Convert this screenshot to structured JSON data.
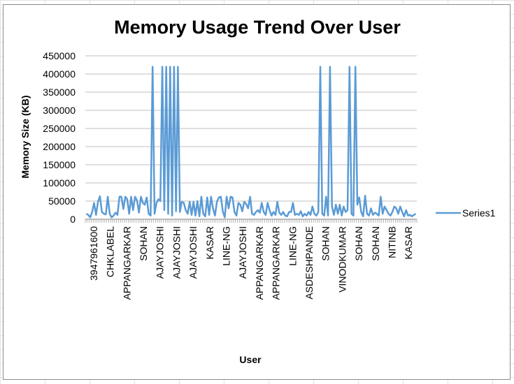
{
  "chart_data": {
    "type": "line",
    "title": "Memory Usage Trend Over User",
    "xlabel": "User",
    "ylabel": "Memory Size (KB)",
    "ylim": [
      0,
      450000
    ],
    "y_ticks": [
      "0",
      "50000",
      "100000",
      "150000",
      "200000",
      "250000",
      "300000",
      "350000",
      "400000",
      "450000"
    ],
    "x_tick_labels": [
      "3947961600",
      "CHKLABEL",
      "APPANGARKAR",
      "SOHAN",
      "AJAYJOSHI",
      "AJAYJOSHI",
      "AJAYJOSHI",
      "KASAR",
      "LINE-NG",
      "AJAYJOSHI",
      "APPANGARKAR",
      "APPANGARKAR",
      "LINE-NG",
      "ASDESHPANDE",
      "SOHAN",
      "VINODKUMAR",
      "SOHAN",
      "SOHAN",
      "NITINB",
      "KASAR"
    ],
    "legend": "right",
    "grid": true,
    "color": "#5b9bd5",
    "series": [
      {
        "name": "Series1",
        "values": [
          15000,
          12000,
          5000,
          20000,
          45000,
          12000,
          48000,
          63000,
          20000,
          15000,
          13000,
          62000,
          15000,
          5000,
          10000,
          18000,
          12000,
          62000,
          62000,
          28000,
          62000,
          55000,
          15000,
          62000,
          25000,
          62000,
          52000,
          18000,
          62000,
          45000,
          40000,
          60000,
          15000,
          10000,
          420000,
          15000,
          45000,
          55000,
          50000,
          420000,
          25000,
          420000,
          15000,
          420000,
          10000,
          420000,
          22000,
          420000,
          20000,
          48000,
          45000,
          25000,
          15000,
          48000,
          12000,
          48000,
          10000,
          50000,
          8000,
          62000,
          15000,
          8000,
          60000,
          12000,
          62000,
          30000,
          10000,
          48000,
          60000,
          62000,
          22000,
          5000,
          62000,
          30000,
          62000,
          60000,
          20000,
          10000,
          45000,
          40000,
          22000,
          48000,
          42000,
          30000,
          62000,
          15000,
          12000,
          20000,
          25000,
          18000,
          45000,
          20000,
          12000,
          45000,
          25000,
          10000,
          20000,
          12000,
          48000,
          18000,
          12000,
          20000,
          10000,
          8000,
          20000,
          20000,
          45000,
          12000,
          15000,
          12000,
          22000,
          8000,
          15000,
          10000,
          20000,
          12000,
          35000,
          15000,
          10000,
          20000,
          420000,
          15000,
          10000,
          62000,
          10000,
          420000,
          35000,
          12000,
          40000,
          15000,
          40000,
          10000,
          35000,
          20000,
          25000,
          420000,
          15000,
          10000,
          420000,
          40000,
          60000,
          20000,
          8000,
          65000,
          15000,
          10000,
          30000,
          12000,
          18000,
          15000,
          10000,
          62000,
          15000,
          35000,
          25000,
          15000,
          10000,
          20000,
          35000,
          30000,
          15000,
          35000,
          20000,
          8000,
          25000,
          10000,
          12000,
          8000,
          12000,
          15000
        ]
      }
    ]
  }
}
